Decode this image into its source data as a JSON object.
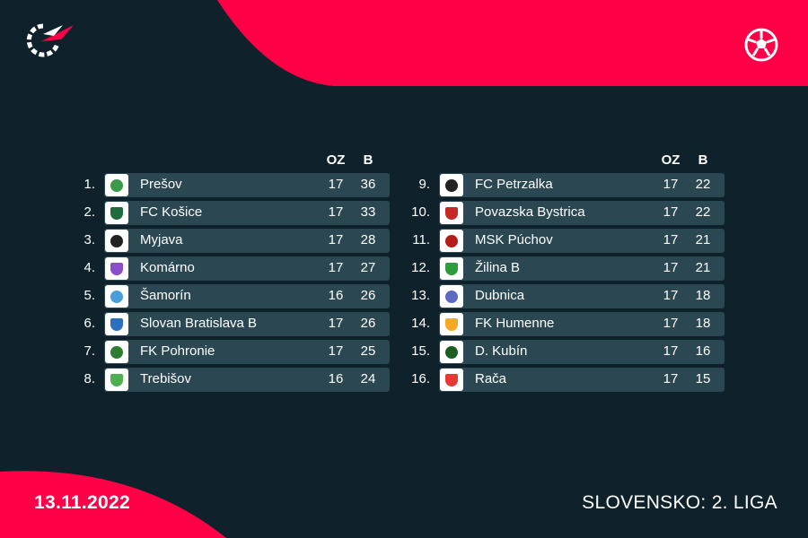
{
  "header": {
    "col_games": "OZ",
    "col_points": "B"
  },
  "brand": {
    "accent": "#ff0046",
    "background": "#0f222c",
    "row_bg": "#2a4752"
  },
  "icons": {
    "logo": "flashscore-logo-icon",
    "sport": "soccer-ball-icon"
  },
  "standings_left": [
    {
      "rank": "1.",
      "team": "Prešov",
      "games": "17",
      "points": "36",
      "crest": "#3a9a4a"
    },
    {
      "rank": "2.",
      "team": "FC Košice",
      "games": "17",
      "points": "33",
      "crest": "#1f6b3a"
    },
    {
      "rank": "3.",
      "team": "Myjava",
      "games": "17",
      "points": "28",
      "crest": "#222222"
    },
    {
      "rank": "4.",
      "team": "Komárno",
      "games": "17",
      "points": "27",
      "crest": "#8a4fc8"
    },
    {
      "rank": "5.",
      "team": "Šamorín",
      "games": "16",
      "points": "26",
      "crest": "#4a9fd8"
    },
    {
      "rank": "6.",
      "team": "Slovan Bratislava B",
      "games": "17",
      "points": "26",
      "crest": "#2a6fc0"
    },
    {
      "rank": "7.",
      "team": "FK Pohronie",
      "games": "17",
      "points": "25",
      "crest": "#2e7d32"
    },
    {
      "rank": "8.",
      "team": "Trebišov",
      "games": "16",
      "points": "24",
      "crest": "#4caf50"
    }
  ],
  "standings_right": [
    {
      "rank": "9.",
      "team": "FC Petrzalka",
      "games": "17",
      "points": "22",
      "crest": "#222222"
    },
    {
      "rank": "10.",
      "team": "Povazska Bystrica",
      "games": "17",
      "points": "22",
      "crest": "#c62828"
    },
    {
      "rank": "11.",
      "team": "MSK Púchov",
      "games": "17",
      "points": "21",
      "crest": "#b71c1c"
    },
    {
      "rank": "12.",
      "team": "Žilina B",
      "games": "17",
      "points": "21",
      "crest": "#2e9b3e"
    },
    {
      "rank": "13.",
      "team": "Dubnica",
      "games": "17",
      "points": "18",
      "crest": "#5c6bc0"
    },
    {
      "rank": "14.",
      "team": "FK Humenne",
      "games": "17",
      "points": "18",
      "crest": "#f9a825"
    },
    {
      "rank": "15.",
      "team": "D. Kubín",
      "games": "17",
      "points": "16",
      "crest": "#1b5e20"
    },
    {
      "rank": "16.",
      "team": "Rača",
      "games": "17",
      "points": "15",
      "crest": "#e53935"
    }
  ],
  "footer": {
    "date": "13.11.2022",
    "league": "SLOVENSKO: 2. LIGA"
  }
}
